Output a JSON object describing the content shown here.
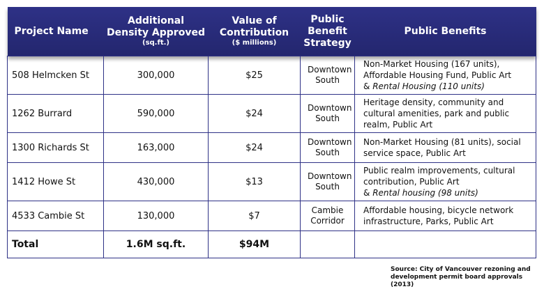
{
  "table": {
    "header": {
      "project": "Project Name",
      "density": "Additional Density Approved",
      "density_unit": "(sq.ft.)",
      "value": "Value of Contribution",
      "value_unit": "($ millions)",
      "strategy": "Public Benefit Strategy",
      "benefits": "Public Benefits"
    },
    "rows": [
      {
        "project": "508 Helmcken St",
        "density": "300,000",
        "value": "$25",
        "strategy": "Downtown South",
        "benefits": [
          "Non-Market Housing (167 units),",
          "Affordable Housing Fund, Public Art"
        ],
        "note_prefix": "&",
        "note_italic": "Rental Housing (110 units)"
      },
      {
        "project": "1262 Burrard",
        "density": "590,000",
        "value": "$24",
        "strategy": "Downtown South",
        "benefits": [
          "Heritage density, community and",
          "cultural amenities, park and public",
          "realm, Public Art"
        ]
      },
      {
        "project": "1300 Richards St",
        "density": "163,000",
        "value": "$24",
        "strategy": "Downtown South",
        "benefits": [
          "Non-Market Housing (81 units), social",
          "service space, Public Art"
        ]
      },
      {
        "project": "1412 Howe St",
        "density": "430,000",
        "value": "$13",
        "strategy": "Downtown South",
        "benefits": [
          "Public realm improvements, cultural",
          "contribution, Public Art"
        ],
        "note_prefix": "&",
        "note_italic": "Rental housing (98 units)"
      },
      {
        "project": "4533 Cambie St",
        "density": "130,000",
        "value": "$7",
        "strategy": "Cambie Corridor",
        "benefits": [
          "Affordable housing, bicycle network",
          "infrastructure, Parks, Public Art"
        ]
      }
    ],
    "total": {
      "label": "Total",
      "density": "1.6M sq.ft.",
      "value": "$94M"
    }
  },
  "source": [
    "Source: City of Vancouver rezoning and",
    "development permit board approvals (2013)"
  ]
}
